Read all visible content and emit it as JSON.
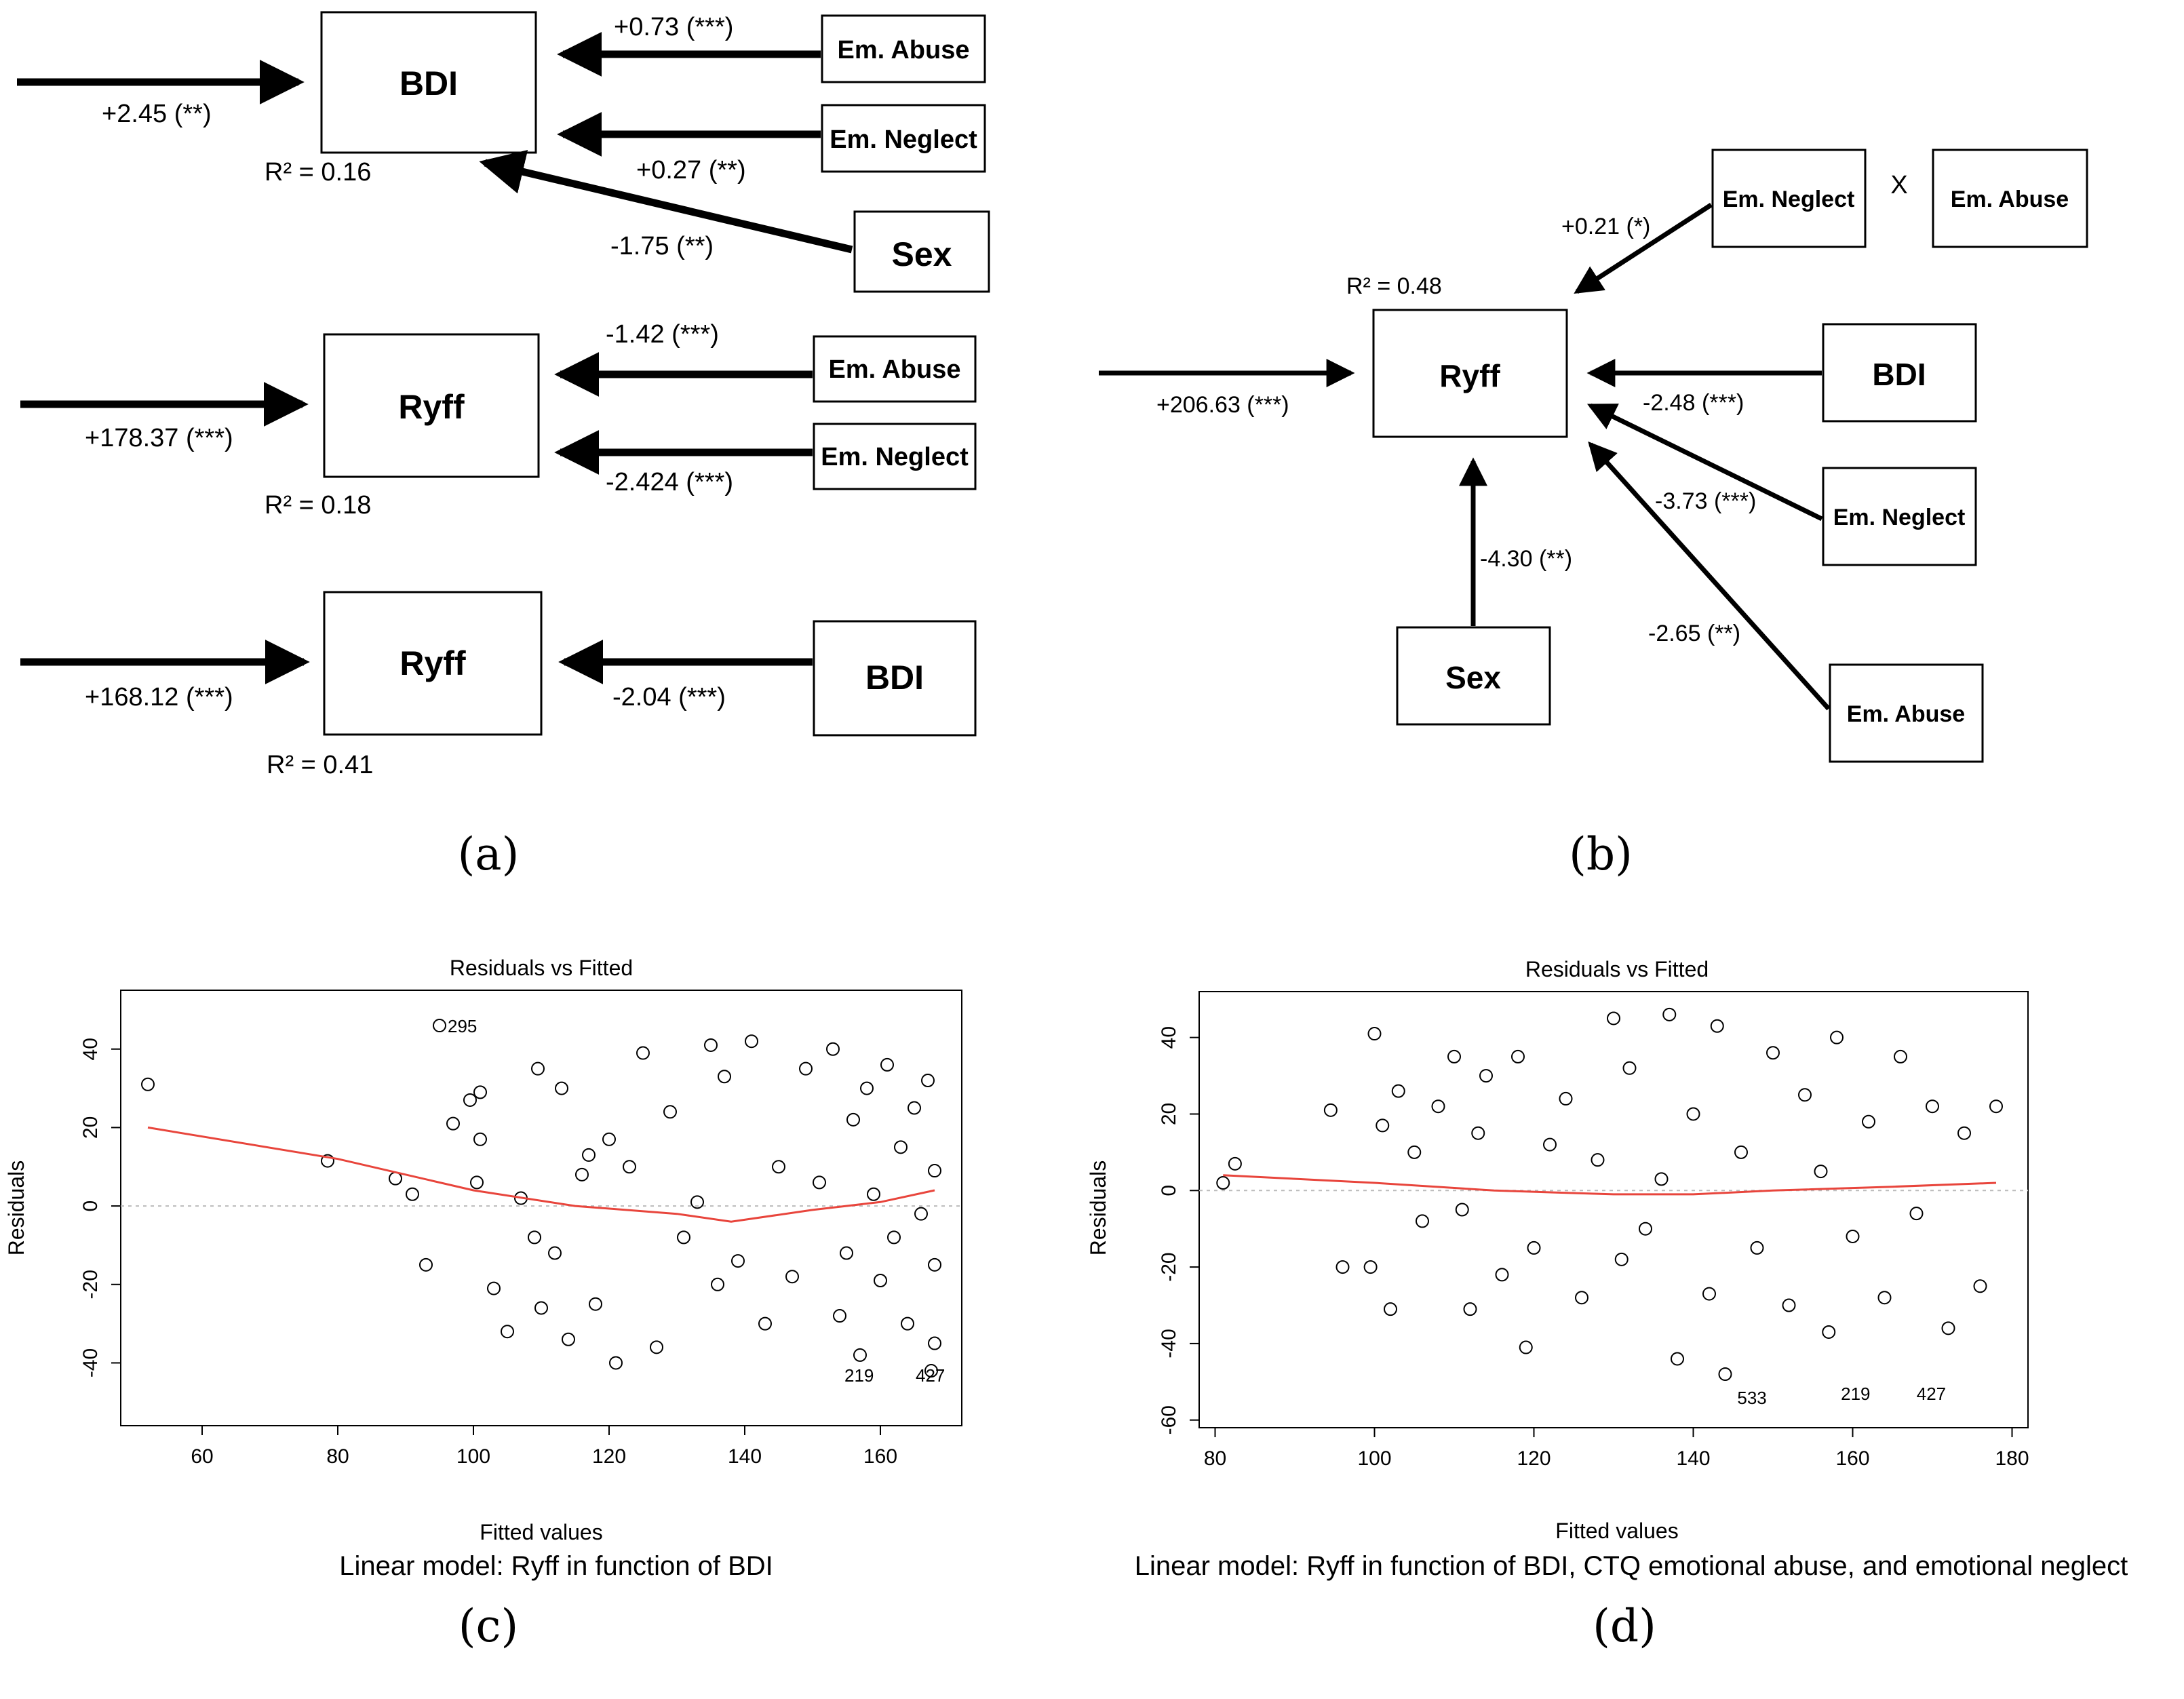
{
  "panel_labels": {
    "a": "(a)",
    "b": "(b)",
    "c": "(c)",
    "d": "(d)"
  },
  "panel_a": {
    "model1": {
      "outcome": "BDI",
      "intercept": "+2.45 (**)",
      "r2": "R² = 0.16",
      "predictors": [
        {
          "name": "Em. Abuse",
          "coef": "+0.73 (***)"
        },
        {
          "name": "Em. Neglect",
          "coef": "+0.27 (**)"
        },
        {
          "name": "Sex",
          "coef": "-1.75 (**)"
        }
      ]
    },
    "model2": {
      "outcome": "Ryff",
      "intercept": "+178.37 (***)",
      "r2": "R² = 0.18",
      "predictors": [
        {
          "name": "Em. Abuse",
          "coef": "-1.42 (***)"
        },
        {
          "name": "Em. Neglect",
          "coef": "-2.424 (***)"
        }
      ]
    },
    "model3": {
      "outcome": "Ryff",
      "intercept": "+168.12 (***)",
      "r2": "R² = 0.41",
      "predictors": [
        {
          "name": "BDI",
          "coef": "-2.04 (***)"
        }
      ]
    }
  },
  "panel_b": {
    "outcome": "Ryff",
    "intercept": "+206.63 (***)",
    "r2": "R² = 0.48",
    "interaction": {
      "left": "Em. Neglect",
      "op": "X",
      "right": "Em. Abuse",
      "coef": "+0.21 (*)"
    },
    "predictors": [
      {
        "name": "BDI",
        "coef": "-2.48 (***)"
      },
      {
        "name": "Em. Neglect",
        "coef": "-3.73 (***)"
      },
      {
        "name": "Em. Abuse",
        "coef": "-2.65 (**)"
      },
      {
        "name": "Sex",
        "coef": "-4.30 (**)"
      }
    ]
  },
  "chart_data": [
    {
      "type": "scatter",
      "title": "Residuals vs Fitted",
      "xlabel": "Fitted values",
      "ylabel": "Residuals",
      "caption": "Linear model: Ryff in function of BDI",
      "xlim": [
        48,
        172
      ],
      "ylim": [
        -56,
        55
      ],
      "xticks": [
        60,
        80,
        100,
        120,
        140,
        160
      ],
      "yticks": [
        40,
        20,
        0,
        -20,
        -40
      ],
      "series": [
        {
          "name": "residuals",
          "x": [
            52,
            78.5,
            88.5,
            91,
            93,
            95,
            97,
            99.5,
            100.5,
            101,
            101,
            103,
            105,
            107,
            109,
            109.5,
            110,
            112,
            113,
            114,
            116,
            117,
            118,
            120,
            121,
            123,
            125,
            127,
            129,
            131,
            133,
            135,
            136,
            137,
            139,
            141,
            143,
            145,
            147,
            149,
            151,
            153,
            154,
            155,
            156,
            157,
            158,
            159,
            160,
            161,
            162,
            163,
            164,
            165,
            166,
            167,
            167.5,
            168,
            168,
            168
          ],
          "y": [
            31,
            11.5,
            7,
            3,
            -15,
            46,
            21,
            27,
            6,
            29,
            17,
            -21,
            -32,
            2,
            -8,
            35,
            -26,
            -12,
            30,
            -34,
            8,
            13,
            -25,
            17,
            -40,
            10,
            39,
            -36,
            24,
            -8,
            1,
            41,
            -20,
            33,
            -14,
            42,
            -30,
            10,
            -18,
            35,
            6,
            40,
            -28,
            -12,
            22,
            -38,
            30,
            3,
            -19,
            36,
            -8,
            15,
            -30,
            25,
            -2,
            32,
            -42,
            -15,
            9,
            -35
          ]
        }
      ],
      "trend": {
        "name": "loess",
        "x": [
          52,
          80,
          100,
          115,
          130,
          138,
          150,
          160,
          168
        ],
        "y": [
          20,
          12,
          4,
          0,
          -2,
          -4,
          -1,
          1,
          4
        ]
      },
      "annotations": [
        {
          "label": "295",
          "x": 95,
          "y": 46
        },
        {
          "label": "219",
          "x": 153.5,
          "y": -43
        },
        {
          "label": "427",
          "x": 164,
          "y": -43
        }
      ]
    },
    {
      "type": "scatter",
      "title": "Residuals vs Fitted",
      "xlabel": "Fitted values",
      "ylabel": "Residuals",
      "caption": "Linear model: Ryff in function of BDI, CTQ emotional abuse, and emotional neglect",
      "xlim": [
        78,
        182
      ],
      "ylim": [
        -62,
        52
      ],
      "xticks": [
        80,
        100,
        120,
        140,
        160,
        180
      ],
      "yticks": [
        40,
        20,
        0,
        -20,
        -40,
        -60
      ],
      "series": [
        {
          "name": "residuals",
          "x": [
            81,
            82.5,
            94.5,
            96,
            99.5,
            100,
            101,
            102,
            103,
            105,
            106,
            108,
            110,
            111,
            112,
            113,
            114,
            116,
            118,
            119,
            120,
            122,
            124,
            126,
            128,
            130,
            131,
            132,
            134,
            136,
            137,
            138,
            140,
            142,
            143,
            144,
            146,
            148,
            150,
            152,
            154,
            156,
            157,
            158,
            160,
            162,
            164,
            166,
            168,
            170,
            172,
            174,
            176,
            178
          ],
          "y": [
            2,
            7,
            21,
            -20,
            -20,
            41,
            17,
            -31,
            26,
            10,
            -8,
            22,
            35,
            -5,
            -31,
            15,
            30,
            -22,
            35,
            -41,
            -15,
            12,
            24,
            -28,
            8,
            45,
            -18,
            32,
            -10,
            3,
            46,
            -44,
            20,
            -27,
            43,
            -48,
            10,
            -15,
            36,
            -30,
            25,
            5,
            -37,
            40,
            -12,
            18,
            -28,
            35,
            -6,
            22,
            -36,
            15,
            -25,
            22
          ]
        }
      ],
      "trend": {
        "name": "loess",
        "x": [
          81,
          100,
          115,
          130,
          140,
          150,
          165,
          178
        ],
        "y": [
          4,
          2,
          0,
          -1,
          -1,
          0,
          1,
          2
        ]
      },
      "annotations": [
        {
          "label": "533",
          "x": 144.5,
          "y": -54
        },
        {
          "label": "219",
          "x": 157.5,
          "y": -53
        },
        {
          "label": "427",
          "x": 167,
          "y": -53
        }
      ]
    }
  ]
}
